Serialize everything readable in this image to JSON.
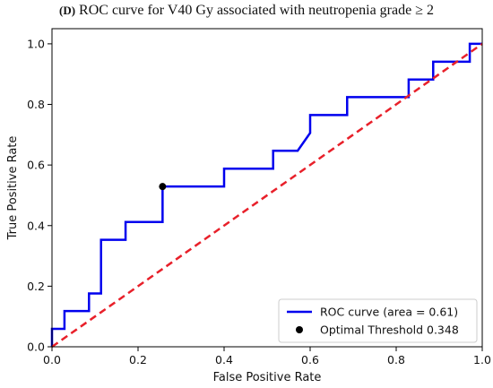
{
  "title": {
    "prefix": "(D)",
    "text": "ROC curve for V40 Gy associated with neutropenia grade ≥ 2"
  },
  "colors": {
    "roc": "#0000ee",
    "diagonal": "#e8202a",
    "point": "#000000",
    "axes": "#000000"
  },
  "chart_data": {
    "type": "line",
    "xlabel": "False Positive Rate",
    "ylabel": "True Positive Rate",
    "xlim": [
      0.0,
      1.0
    ],
    "ylim": [
      0.0,
      1.05
    ],
    "xticks": [
      "0.0",
      "0.2",
      "0.4",
      "0.6",
      "0.8",
      "1.0"
    ],
    "yticks": [
      "0.0",
      "0.2",
      "0.4",
      "0.6",
      "0.8",
      "1.0"
    ],
    "grid": false,
    "legend_position": "bottom-right",
    "series": [
      {
        "name": "ROC curve (area = 0.61)",
        "style": "solid",
        "x": [
          0.0,
          0.0,
          0.029,
          0.029,
          0.086,
          0.086,
          0.114,
          0.114,
          0.171,
          0.171,
          0.257,
          0.257,
          0.4,
          0.4,
          0.514,
          0.514,
          0.571,
          0.6,
          0.6,
          0.686,
          0.686,
          0.829,
          0.829,
          0.886,
          0.886,
          0.971,
          0.971,
          1.0
        ],
        "y": [
          0.0,
          0.059,
          0.059,
          0.118,
          0.118,
          0.176,
          0.176,
          0.353,
          0.353,
          0.412,
          0.412,
          0.529,
          0.529,
          0.588,
          0.588,
          0.647,
          0.647,
          0.706,
          0.765,
          0.765,
          0.824,
          0.824,
          0.882,
          0.882,
          0.941,
          0.941,
          1.0,
          1.0
        ]
      },
      {
        "name": "",
        "style": "dashed",
        "x": [
          0.0,
          1.0
        ],
        "y": [
          0.0,
          1.0
        ]
      }
    ],
    "points": [
      {
        "name": "Optimal Threshold 0.348",
        "x": 0.257,
        "y": 0.529
      }
    ]
  }
}
